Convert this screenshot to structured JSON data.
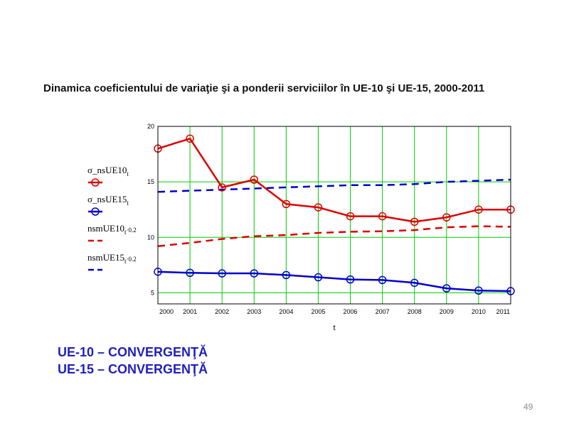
{
  "slide": {
    "title": "Dinamica coeficientului de variaţie şi a ponderii serviciilor în UE-10 şi UE-15, 2000-2011",
    "conclusions": [
      "UE-10 – CONVERGENŢĂ",
      "UE-15 – CONVERGENŢĂ"
    ],
    "page_number": "49"
  },
  "chart_data": {
    "type": "line",
    "xlabel": "t",
    "ylabel": "",
    "x": [
      2000,
      2001,
      2002,
      2003,
      2004,
      2005,
      2006,
      2007,
      2008,
      2009,
      2010,
      2011
    ],
    "x_tick_labels": [
      "2000",
      "2001",
      "2002",
      "2003",
      "2004",
      "2005",
      "2006",
      "2007",
      "2008",
      "2009",
      "2010",
      "2011"
    ],
    "xlim": [
      2000,
      2011
    ],
    "ylim": [
      4,
      20
    ],
    "y_ticks": [
      5,
      10,
      15,
      20
    ],
    "grid": true,
    "grid_color": "#00cc00",
    "legend_position": "left",
    "series": [
      {
        "legend": {
          "main": "σ_nsUE10",
          "sub": "t",
          "suffix": ""
        },
        "color": "#dd0000",
        "style": "solid",
        "marker": "circle",
        "values": [
          18.0,
          18.9,
          14.5,
          15.2,
          13.0,
          12.7,
          11.9,
          11.9,
          11.4,
          11.8,
          12.5,
          12.5
        ]
      },
      {
        "legend": {
          "main": "σ_nsUE15",
          "sub": "t",
          "suffix": ""
        },
        "color": "#0000cc",
        "style": "solid",
        "marker": "circle",
        "values": [
          6.9,
          6.8,
          6.75,
          6.75,
          6.6,
          6.4,
          6.2,
          6.15,
          5.9,
          5.4,
          5.2,
          5.15
        ]
      },
      {
        "legend": {
          "main": "nsmUE10",
          "sub": "t",
          "suffix": "·0.2"
        },
        "color": "#dd0000",
        "style": "dashed",
        "marker": "none",
        "values": [
          9.2,
          9.5,
          9.85,
          10.1,
          10.2,
          10.4,
          10.5,
          10.55,
          10.65,
          10.9,
          11.0,
          10.95
        ]
      },
      {
        "legend": {
          "main": "nsmUE15",
          "sub": "t",
          "suffix": "·0.2"
        },
        "color": "#0000cc",
        "style": "dashed",
        "marker": "none",
        "values": [
          14.1,
          14.2,
          14.3,
          14.4,
          14.5,
          14.6,
          14.7,
          14.7,
          14.8,
          15.0,
          15.1,
          15.2
        ]
      }
    ]
  }
}
